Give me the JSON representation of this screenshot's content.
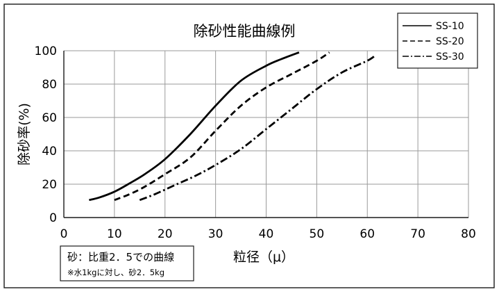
{
  "chart_data": {
    "type": "line",
    "title": "除砂性能曲線例",
    "xlabel": "粒径（μ）",
    "ylabel": "除砂率(%)",
    "xlim": [
      0,
      80
    ],
    "ylim": [
      0,
      100
    ],
    "xticks": [
      0,
      10,
      20,
      30,
      40,
      50,
      60,
      70,
      80
    ],
    "yticks": [
      0,
      20,
      40,
      60,
      80,
      100
    ],
    "grid": true,
    "legend_position": "top-right",
    "series": [
      {
        "name": "SS-10",
        "dash": "solid",
        "x": [
          5,
          7,
          10,
          13,
          16,
          20,
          25,
          30,
          35,
          40,
          43,
          46.5
        ],
        "y": [
          10.5,
          12,
          15.5,
          20.5,
          26,
          35,
          50,
          67,
          82,
          91,
          95,
          99
        ]
      },
      {
        "name": "SS-20",
        "dash": "dashed",
        "x": [
          10,
          13,
          16,
          20,
          25,
          30,
          35,
          40,
          45,
          50,
          52.5
        ],
        "y": [
          10.5,
          14,
          18.5,
          26,
          36,
          52,
          67,
          78,
          86,
          94,
          99
        ]
      },
      {
        "name": "SS-30",
        "dash": "dash-dot",
        "x": [
          15,
          18,
          22,
          26,
          30,
          35,
          40,
          45,
          50,
          55,
          60,
          61.5
        ],
        "y": [
          10.5,
          14,
          19.5,
          25,
          31.5,
          41,
          53,
          65,
          77,
          87,
          94,
          97
        ]
      }
    ],
    "annotation": {
      "line1": "砂：比重2．5での曲線",
      "line2": "※水1kgに対し、砂2．5kg"
    }
  }
}
